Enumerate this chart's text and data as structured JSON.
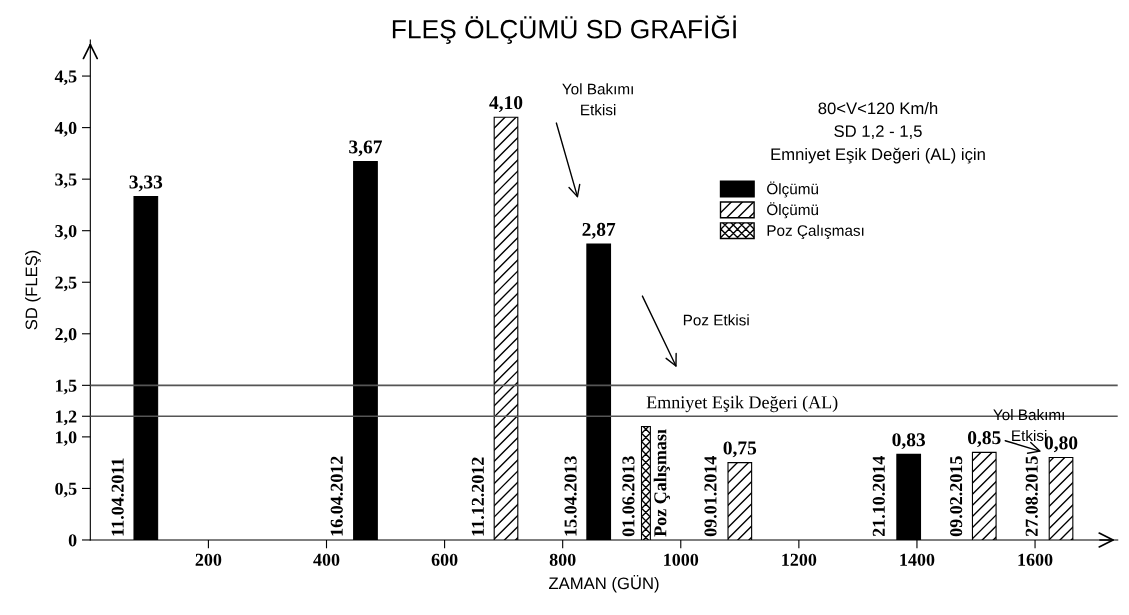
{
  "chart_data": {
    "type": "bar",
    "title": "FLEŞ ÖLÇÜMÜ SD GRAFİĞİ",
    "xlabel": "ZAMAN (GÜN)",
    "ylabel": "SD (FLEŞ)",
    "series": [
      {
        "name": "Ölçümü",
        "color": "#000000",
        "x": [
          94,
          466,
          861,
          1386
        ],
        "values": [
          3.33,
          3.67,
          2.87,
          0.83
        ],
        "value_labels": [
          "3,33",
          "3,67",
          "2,87",
          "0,83"
        ]
      },
      {
        "name": "Ölçümü",
        "color": "#000000",
        "x": [
          704,
          1100,
          1514,
          1644
        ],
        "values": [
          4.1,
          0.75,
          0.85,
          0.8
        ],
        "value_labels": [
          "4,10",
          "0,75",
          "0,85",
          "0,80"
        ]
      },
      {
        "name": "Poz Çalışması",
        "color": "#000000",
        "x": [
          941
        ],
        "values": [
          1.1
        ],
        "value_labels": [
          null
        ]
      }
    ],
    "xlim": [
      0,
      1740
    ],
    "xticks": [
      200,
      400,
      600,
      800,
      1000,
      1200,
      1400,
      1600
    ],
    "ylim": [
      0,
      4.85
    ],
    "yticks": [
      {
        "value": 0,
        "label": "0"
      },
      {
        "value": 0.5,
        "label": "0,5"
      },
      {
        "value": 1.0,
        "label": "1,0"
      },
      {
        "value": 1.2,
        "label": "1,2"
      },
      {
        "value": 1.5,
        "label": "1,5"
      },
      {
        "value": 2.0,
        "label": "2,0"
      },
      {
        "value": 2.5,
        "label": "2,5"
      },
      {
        "value": 3.0,
        "label": "3,0"
      },
      {
        "value": 3.5,
        "label": "3,5"
      },
      {
        "value": 4.0,
        "label": "4,0"
      },
      {
        "value": 4.5,
        "label": "4,5"
      }
    ],
    "ref_lines": [
      {
        "axis": "y",
        "value": 1.5,
        "color": "#555555"
      },
      {
        "axis": "y",
        "value": 1.2,
        "color": "#555555",
        "label": "Emniyet Eşik Değeri (AL)"
      }
    ],
    "annotations": [
      "80<V<120 Km/h\nSD 1,2 - 1,5\nEmniyet Eşik Değeri (AL) için",
      "Yol Bakımı\nEtkisi",
      "Poz Etkisi",
      "Yol Bakımı\nEtkisi",
      "11.04.2011",
      "16.04.2012",
      "11.12.2012",
      "15.04.2013",
      "01.06.2013",
      "Poz Çalışması",
      "09.01.2014",
      "21.10.2014",
      "09.02.2015",
      "27.08.2015"
    ],
    "legend": "top right",
    "grid": false
  }
}
